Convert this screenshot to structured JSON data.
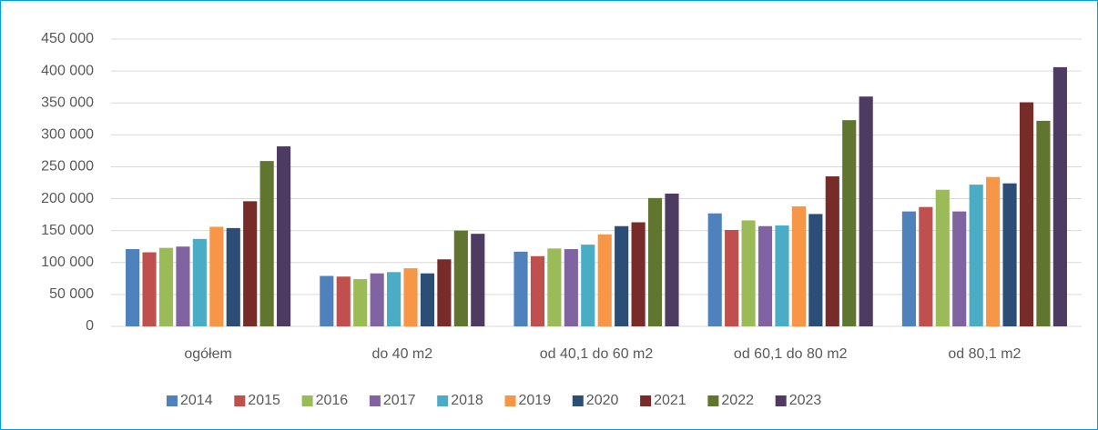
{
  "chart_data": {
    "type": "bar",
    "categories": [
      "ogółem",
      "do 40 m2",
      "od 40,1 do 60 m2",
      "od 60,1 do 80 m2",
      "od 80,1 m2"
    ],
    "series": [
      {
        "name": "2014",
        "color": "#4f81bd",
        "values": [
          121000,
          79000,
          117000,
          177000,
          180000
        ]
      },
      {
        "name": "2015",
        "color": "#c0504d",
        "values": [
          116000,
          78000,
          110000,
          151000,
          187000
        ]
      },
      {
        "name": "2016",
        "color": "#9bbb59",
        "values": [
          123000,
          74000,
          122000,
          166000,
          214000
        ]
      },
      {
        "name": "2017",
        "color": "#8064a2",
        "values": [
          125000,
          83000,
          121000,
          157000,
          180000
        ]
      },
      {
        "name": "2018",
        "color": "#4bacc6",
        "values": [
          137000,
          85000,
          128000,
          158000,
          222000
        ]
      },
      {
        "name": "2019",
        "color": "#f79646",
        "values": [
          156000,
          91000,
          144000,
          188000,
          234000
        ]
      },
      {
        "name": "2020",
        "color": "#2c4d75",
        "values": [
          154000,
          83000,
          157000,
          176000,
          224000
        ]
      },
      {
        "name": "2021",
        "color": "#772c2a",
        "values": [
          196000,
          105000,
          163000,
          235000,
          351000
        ]
      },
      {
        "name": "2022",
        "color": "#5f7530",
        "values": [
          259000,
          150000,
          201000,
          323000,
          322000
        ]
      },
      {
        "name": "2023",
        "color": "#4d3b62",
        "values": [
          282000,
          145000,
          208000,
          360000,
          406000
        ]
      }
    ],
    "ylim": [
      0,
      450000
    ],
    "yticks": [
      0,
      {
        "value": 50000,
        "label": "50 000"
      },
      {
        "value": 100000,
        "label": "100 000"
      },
      {
        "value": 150000,
        "label": "150 000"
      },
      {
        "value": 200000,
        "label": "200 000"
      },
      {
        "value": 250000,
        "label": "250 000"
      },
      {
        "value": 300000,
        "label": "300 000"
      },
      {
        "value": 350000,
        "label": "350 000"
      },
      {
        "value": 400000,
        "label": "400 000"
      },
      {
        "value": 450000,
        "label": "450 000"
      }
    ],
    "grid": true,
    "legend": "bottom"
  }
}
